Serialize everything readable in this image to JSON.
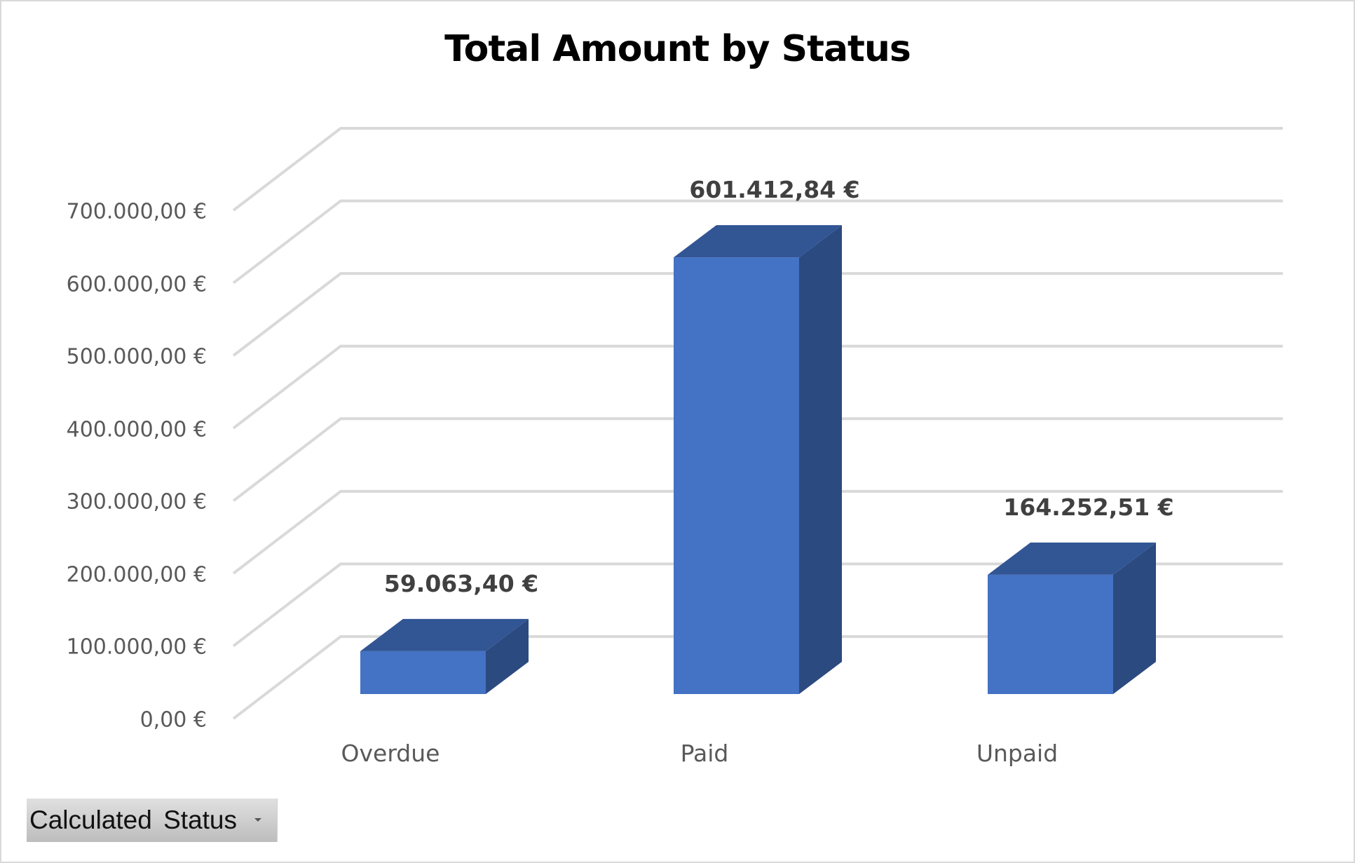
{
  "chart_data": {
    "type": "bar",
    "variant": "3d-column",
    "title": "Total Amount by Status",
    "categories": [
      "Overdue",
      "Paid",
      "Unpaid"
    ],
    "values": [
      59063.4,
      601412.84,
      164252.51
    ],
    "data_labels": [
      "59.063,40 €",
      "601.412,84 €",
      "164.252,51 €"
    ],
    "xlabel": "",
    "ylabel": "",
    "ylim": [
      0,
      700000
    ],
    "yticks": [
      0,
      100000,
      200000,
      300000,
      400000,
      500000,
      600000,
      700000
    ],
    "ytick_labels": [
      "0,00 €",
      "100.000,00 €",
      "200.000,00 €",
      "300.000,00 €",
      "400.000,00 €",
      "500.000,00 €",
      "600.000,00 €",
      "700.000,00 €"
    ],
    "grid": true,
    "legend": "none",
    "colors": {
      "bar_front": "#4472c4",
      "bar_top": "#325594",
      "bar_side": "#2b4a80",
      "grid": "#d9d9d9"
    }
  },
  "filter_button": {
    "label": "Calculated Status"
  }
}
